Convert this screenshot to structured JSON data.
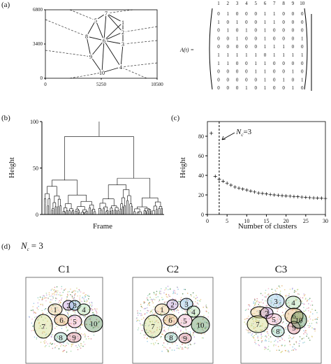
{
  "panel_labels": [
    "(a)",
    "(b)",
    "(c)",
    "(d)"
  ],
  "chart_data": [
    {
      "type": "network",
      "xlim": [
        0,
        10500
      ],
      "ylim": [
        0,
        6800
      ],
      "xticks": [
        0,
        5250,
        10500
      ],
      "yticks": [
        0,
        3400,
        6800
      ],
      "nodes": {
        "labels": [
          "1",
          "2",
          "3",
          "4",
          "5",
          "6",
          "7",
          "8",
          "9",
          "10"
        ],
        "x": [
          7285,
          7285,
          7285,
          7090,
          4725,
          5510,
          5710,
          3870,
          4265,
          5315
        ],
        "y": [
          5550,
          4580,
          3400,
          1110,
          5760,
          3750,
          6450,
          4160,
          2150,
          555
        ]
      }
    },
    {
      "type": "matrix",
      "label": "A(t) =",
      "columns": [
        "1",
        "2",
        "3",
        "4",
        "5",
        "6",
        "7",
        "8",
        "9",
        "10"
      ],
      "rows": [
        [
          0,
          1,
          0,
          0,
          0,
          1,
          1,
          0,
          0,
          0
        ],
        [
          1,
          0,
          1,
          0,
          0,
          1,
          1,
          0,
          0,
          0
        ],
        [
          0,
          1,
          0,
          1,
          0,
          1,
          0,
          0,
          0,
          0
        ],
        [
          0,
          0,
          1,
          0,
          0,
          1,
          0,
          0,
          0,
          1
        ],
        [
          0,
          0,
          0,
          0,
          0,
          1,
          1,
          1,
          0,
          0
        ],
        [
          1,
          1,
          1,
          1,
          1,
          0,
          1,
          1,
          1,
          1
        ],
        [
          1,
          1,
          0,
          0,
          1,
          1,
          0,
          0,
          0,
          0
        ],
        [
          0,
          0,
          0,
          0,
          1,
          1,
          0,
          0,
          1,
          0
        ],
        [
          0,
          0,
          0,
          0,
          0,
          1,
          0,
          1,
          0,
          1
        ],
        [
          0,
          0,
          0,
          1,
          0,
          1,
          0,
          0,
          1,
          0
        ]
      ]
    },
    {
      "type": "dendrogram",
      "ylabel": "Height",
      "xlabel": "Frame",
      "ylim": [
        0,
        100
      ],
      "yticks": [
        0,
        50,
        100
      ],
      "root_height": 84,
      "child_heights": [
        37,
        39
      ]
    },
    {
      "type": "scatter",
      "xlabel": "Number of clusters",
      "ylabel": "Height",
      "xlim": [
        0,
        30
      ],
      "ylim": [
        0,
        95
      ],
      "xticks": [
        0,
        5,
        10,
        15,
        20,
        25,
        30
      ],
      "yticks": [
        0,
        20,
        40,
        60,
        80
      ],
      "x": [
        1,
        2,
        3,
        4,
        5,
        6,
        7,
        8,
        9,
        10,
        11,
        12,
        13,
        14,
        15,
        16,
        17,
        18,
        19,
        20,
        21,
        22,
        23,
        24,
        25,
        26,
        27,
        28,
        29,
        30
      ],
      "values": [
        83,
        39,
        36,
        34,
        32,
        30,
        28,
        27,
        26,
        25,
        24,
        23,
        22,
        21.5,
        21,
        20.5,
        20,
        19.6,
        19.3,
        19,
        18.7,
        18.4,
        18.1,
        17.8,
        17.5,
        17.2,
        17,
        16.8,
        16.6,
        16.4
      ],
      "vline": 3,
      "annotation": {
        "main": "N",
        "sub": "c",
        "tail": "=3"
      }
    }
  ],
  "clusters": {
    "heading": {
      "main": "N",
      "sub": "c",
      "tail": "= 3"
    },
    "panels": [
      {
        "title": "C1",
        "labels": [
          "1",
          "2",
          "3",
          "4",
          "5",
          "6",
          "7",
          "8",
          "9",
          "10"
        ]
      },
      {
        "title": "C2",
        "labels": [
          "1",
          "2",
          "3",
          "4",
          "5",
          "6",
          "7",
          "8",
          "9",
          "10"
        ]
      },
      {
        "title": "C3",
        "labels": [
          "1",
          "2",
          "3",
          "4",
          "5",
          "6",
          "7",
          "8",
          "9",
          "10"
        ]
      }
    ]
  }
}
